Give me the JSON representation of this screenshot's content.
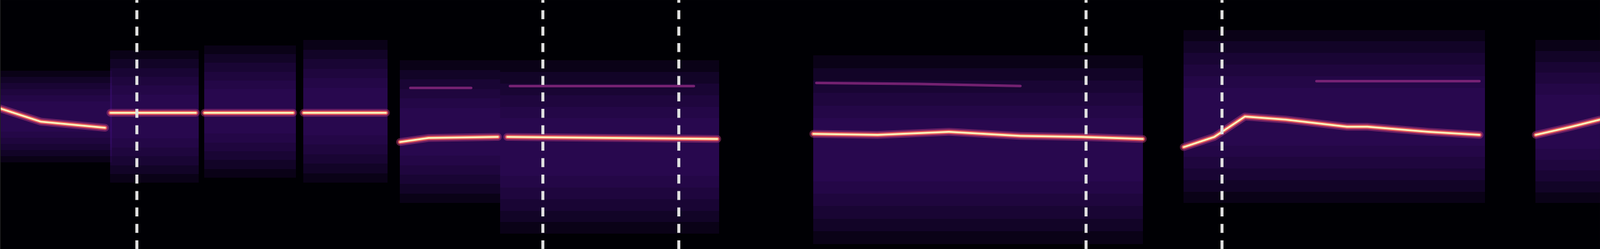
{
  "chart_data": {
    "type": "spectrogram",
    "xlim": [
      0,
      1568
    ],
    "ylim": [
      0,
      245
    ],
    "tick_labels": false,
    "boundaries": [
      134,
      532,
      665,
      1064,
      1197
    ],
    "segments": [
      {
        "x": [
          0,
          40,
          103
        ],
        "y": [
          138,
          125,
          119
        ],
        "energy": {
          "x": [
            0,
            110
          ],
          "y": [
            85,
            175
          ]
        }
      },
      {
        "x": [
          108,
          150,
          192
        ],
        "y": [
          134,
          134,
          134
        ],
        "energy": {
          "x": [
            108,
            195
          ],
          "y": [
            65,
            195
          ]
        }
      },
      {
        "x": [
          200,
          245,
          287
        ],
        "y": [
          134,
          134,
          134
        ],
        "energy": {
          "x": [
            200,
            290
          ],
          "y": [
            70,
            200
          ]
        }
      },
      {
        "x": [
          297,
          340,
          378
        ],
        "y": [
          134,
          134,
          134
        ],
        "energy": {
          "x": [
            297,
            380
          ],
          "y": [
            65,
            205
          ]
        }
      },
      {
        "x": [
          392,
          420,
          488
        ],
        "y": [
          105,
          109,
          110
        ],
        "energy": {
          "x": [
            392,
            490
          ],
          "y": [
            45,
            185
          ]
        },
        "harmonic": {
          "x": [
            402,
            462
          ],
          "y": [
            158,
            158
          ]
        }
      },
      {
        "x": [
          497,
          600,
          703
        ],
        "y": [
          110,
          109,
          108
        ],
        "energy": {
          "x": [
            490,
            705
          ],
          "y": [
            15,
            185
          ]
        },
        "harmonic": {
          "x": [
            500,
            680
          ],
          "y": [
            160,
            160
          ]
        }
      },
      {
        "x": [
          797,
          860,
          930,
          1000,
          1060,
          1120
        ],
        "y": [
          113,
          112,
          115,
          111,
          110,
          108
        ],
        "energy": {
          "x": [
            797,
            1120
          ],
          "y": [
            5,
            190
          ]
        },
        "harmonic": {
          "x": [
            800,
            900,
            1000
          ],
          "y": [
            163,
            162,
            160
          ]
        }
      },
      {
        "x": [
          1160,
          1190,
          1220,
          1260,
          1320,
          1340,
          1400,
          1450
        ],
        "y": [
          100,
          110,
          130,
          127,
          120,
          120,
          115,
          112
        ],
        "energy": {
          "x": [
            1160,
            1455
          ],
          "y": [
            45,
            215
          ]
        },
        "harmonic": {
          "x": [
            1290,
            1450
          ],
          "y": [
            165,
            165
          ]
        }
      },
      {
        "x": [
          1505,
          1540,
          1568
        ],
        "y": [
          112,
          120,
          127
        ],
        "energy": {
          "x": [
            1505,
            1568
          ],
          "y": [
            45,
            205
          ]
        }
      }
    ]
  }
}
